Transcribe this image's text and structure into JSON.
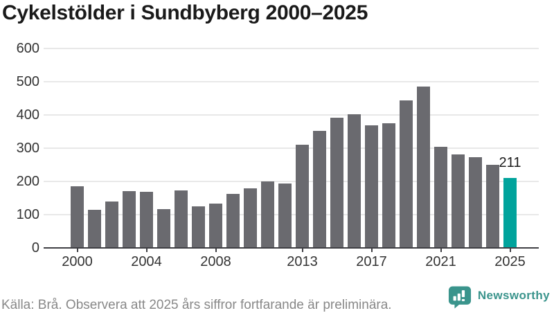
{
  "title": "Cykelstölder i Sundbyberg 2000–2025",
  "source_note": "Källa: Brå. Observera att 2025 års siffror fortfarande är preliminära.",
  "logo": {
    "brand": "Newsworthy"
  },
  "annotation": {
    "text": "211"
  },
  "colors": {
    "bar_default": "#6a6a6f",
    "bar_highlight": "#00a39c",
    "gridline": "#e8e8e8",
    "axis_line": "#3f3f44",
    "title_text": "#1a1a1a",
    "tick_text": "#333333",
    "source_text": "#888888",
    "logo_teal": "#3a948c"
  },
  "chart_data": {
    "type": "bar",
    "title": "Cykelstölder i Sundbyberg 2000–2025",
    "categories": [
      2000,
      2001,
      2002,
      2003,
      2004,
      2005,
      2006,
      2007,
      2008,
      2009,
      2010,
      2011,
      2012,
      2013,
      2014,
      2015,
      2016,
      2017,
      2018,
      2019,
      2020,
      2021,
      2022,
      2023,
      2024,
      2025
    ],
    "values": [
      186,
      115,
      140,
      170,
      168,
      117,
      172,
      124,
      133,
      162,
      180,
      200,
      193,
      310,
      353,
      391,
      403,
      369,
      375,
      443,
      486,
      304,
      282,
      272,
      250,
      211
    ],
    "highlight_category": 2025,
    "value_label": {
      "category": 2025,
      "text": "211"
    },
    "xlabel": "",
    "ylabel": "",
    "ylim": [
      0,
      600
    ],
    "y_ticks": [
      0,
      100,
      200,
      300,
      400,
      500,
      600
    ],
    "x_tick_labels": [
      "2000",
      "2004",
      "2008",
      "2013",
      "2017",
      "2021",
      "2025"
    ],
    "grid": "horizontal",
    "legend": "none"
  }
}
